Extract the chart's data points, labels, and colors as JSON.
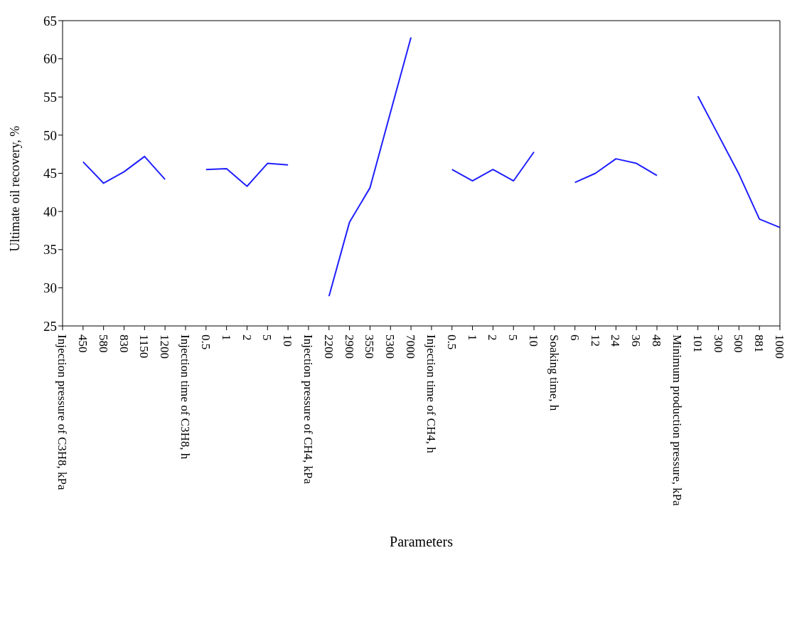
{
  "chart_data": {
    "type": "line",
    "xlabel": "Parameters",
    "ylabel": "Ultimate oil recovery, %",
    "categories": [
      "Injection pressure of C3H8, kPa",
      "450",
      "580",
      "830",
      "1150",
      "1200",
      "Injection time of C3H8, h",
      "0.5",
      "1",
      "2",
      "5",
      "10",
      "Injection pressure of CH4, kPa",
      "2200",
      "2900",
      "3550",
      "5300",
      "7000",
      "Injection time of CH4, h",
      "0.5",
      "1",
      "2",
      "5",
      "10",
      "Soaking time, h",
      "6",
      "12",
      "24",
      "36",
      "48",
      "Minimum production pressure, kPa",
      "101",
      "300",
      "500",
      "881",
      "1000"
    ],
    "series": [
      {
        "color": "#1f1fff",
        "values": [
          null,
          46.5,
          43.7,
          45.2,
          47.2,
          44.2,
          null,
          45.5,
          45.6,
          43.3,
          46.3,
          46.1,
          null,
          28.9,
          38.6,
          43.1,
          53.0,
          62.8,
          null,
          45.5,
          44.0,
          45.5,
          44.0,
          47.8,
          null,
          43.8,
          45.0,
          46.9,
          46.3,
          44.7,
          null,
          55.1,
          50.0,
          44.9,
          39.0,
          37.9
        ]
      }
    ],
    "ylim": [
      25,
      65
    ],
    "yticks": [
      25,
      30,
      35,
      40,
      45,
      50,
      55,
      60,
      65
    ]
  }
}
